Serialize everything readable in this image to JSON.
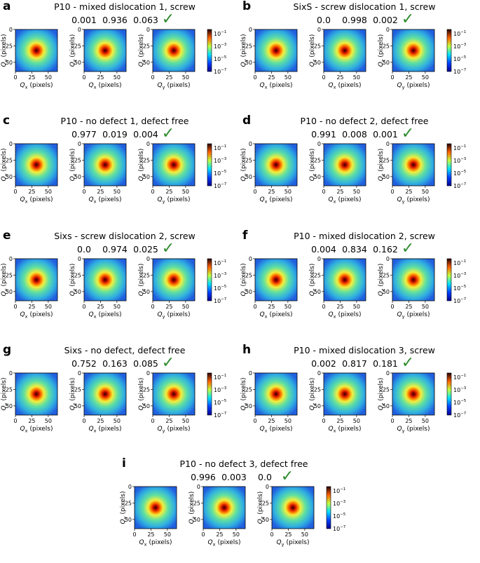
{
  "panels": [
    {
      "letter": "a",
      "title": "P10 - mixed dislocation 1, screw",
      "scores": [
        "0.001",
        "0.936",
        "0.063"
      ],
      "check": "✓"
    },
    {
      "letter": "b",
      "title": "SixS - screw dislocation 1, screw",
      "scores": [
        "0.0",
        "0.998",
        "0.002"
      ],
      "check": "✓"
    },
    {
      "letter": "c",
      "title": "P10 - no defect 1, defect free",
      "scores": [
        "0.977",
        "0.019",
        "0.004"
      ],
      "check": "✓"
    },
    {
      "letter": "d",
      "title": "P10 - no defect 2, defect free",
      "scores": [
        "0.991",
        "0.008",
        "0.001"
      ],
      "check": "✓"
    },
    {
      "letter": "e",
      "title": "Sixs - screw dislocation 2, screw",
      "scores": [
        "0.0",
        "0.974",
        "0.025"
      ],
      "check": "✓"
    },
    {
      "letter": "f",
      "title": "P10 - mixed dislocation 2, screw",
      "scores": [
        "0.004",
        "0.834",
        "0.162"
      ],
      "check": "✓"
    },
    {
      "letter": "g",
      "title": "Sixs - no defect, defect free",
      "scores": [
        "0.752",
        "0.163",
        "0.085"
      ],
      "check": "✓"
    },
    {
      "letter": "h",
      "title": "P10 - mixed dislocation 3, screw",
      "scores": [
        "0.002",
        "0.817",
        "0.181"
      ],
      "check": "✓"
    },
    {
      "letter": "i",
      "title": "P10 - no defect 3, defect free",
      "scores": [
        "0.996",
        "0.003",
        "0.0"
      ],
      "check": "✓"
    }
  ],
  "axes": {
    "symbol": "Q",
    "subscripts": [
      "x",
      "y",
      "z"
    ],
    "unit": "(pixels)",
    "ticks": [
      0,
      25,
      50
    ]
  },
  "colorbar": {
    "base": "10",
    "exponents": [
      "−1",
      "−3",
      "−5",
      "−7"
    ]
  }
}
